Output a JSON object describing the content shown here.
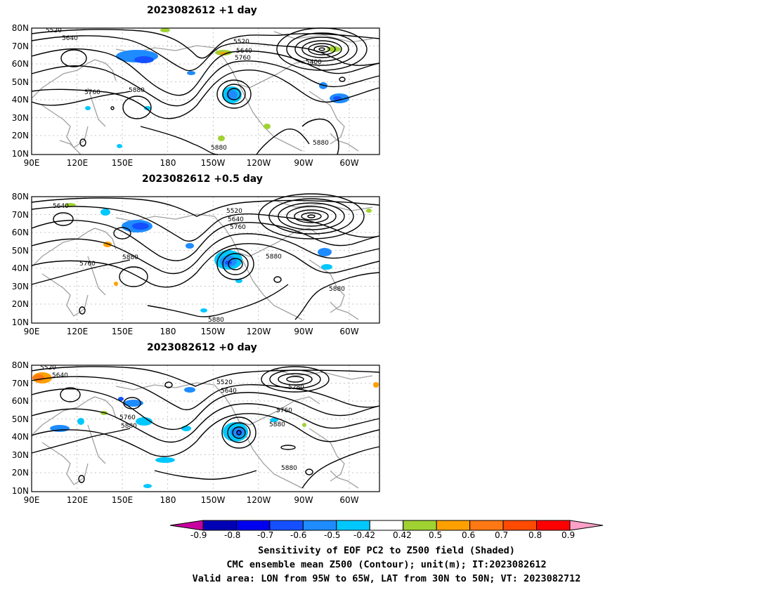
{
  "panels": [
    {
      "title": "2023082612  +1 day",
      "contour_labels": [
        "5520",
        "5640",
        "5520",
        "5640",
        "5760",
        "5400",
        "5760",
        "5880",
        "5880",
        "5880"
      ]
    },
    {
      "title": "2023082612  +0.5 day",
      "contour_labels": [
        "5640",
        "5520",
        "5640",
        "5760",
        "5760",
        "5880",
        "5880",
        "5880",
        "5880"
      ]
    },
    {
      "title": "2023082612  +0 day",
      "contour_labels": [
        "5520",
        "5640",
        "5520",
        "5640",
        "5280",
        "5760",
        "5880",
        "5760",
        "5880",
        "5880"
      ]
    }
  ],
  "axes": {
    "lat_ticks": [
      "80N",
      "70N",
      "60N",
      "50N",
      "40N",
      "30N",
      "20N",
      "10N"
    ],
    "lon_ticks": [
      "90E",
      "120E",
      "150E",
      "180",
      "150W",
      "120W",
      "90W",
      "60W"
    ]
  },
  "colorbar": {
    "labels": [
      "-0.9",
      "-0.8",
      "-0.7",
      "-0.6",
      "-0.5",
      "-0.42",
      "0.42",
      "0.5",
      "0.6",
      "0.7",
      "0.8",
      "0.9"
    ],
    "colors": [
      "#0000b4",
      "#0000f0",
      "#1450ff",
      "#1e8cff",
      "#00c8ff",
      "#ffffff",
      "#a0d232",
      "#ffa000",
      "#ff7814",
      "#ff4b00",
      "#ff0000"
    ],
    "low_arrow_color": "#c800a0",
    "high_arrow_color": "#ffa0c8"
  },
  "caption": {
    "line1": "Sensitivity of EOF PC2 to Z500 field (Shaded)",
    "line2": "CMC ensemble mean Z500 (Contour); unit(m); IT:2023082612",
    "line3": "Valid area: LON from 95W to 65W, LAT from 30N to 50N; VT: 2023082712"
  },
  "colors": {
    "contour": "#000000",
    "coast": "#a0a0a0",
    "grid": "#b4b4b4"
  }
}
